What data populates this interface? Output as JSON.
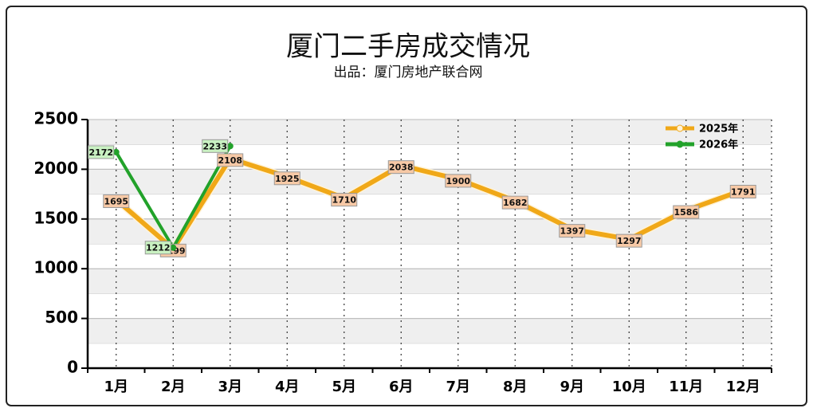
{
  "chart_data": {
    "type": "line",
    "title": "厦门二手房成交情况",
    "subtitle": "出品：厦门房地产联合网",
    "categories": [
      "1月",
      "2月",
      "3月",
      "4月",
      "5月",
      "6月",
      "7月",
      "8月",
      "9月",
      "10月",
      "11月",
      "12月"
    ],
    "series": [
      {
        "name": "2025年",
        "color": "#f0a818",
        "label_fill": "#f7c9a6",
        "values": [
          1695,
          1199,
          2108,
          1925,
          1710,
          2038,
          1900,
          1682,
          1397,
          1297,
          1586,
          1791
        ]
      },
      {
        "name": "2026年",
        "color": "#22a22a",
        "label_fill": "#c9f1c2",
        "values": [
          2172,
          1212,
          2233,
          null,
          null,
          null,
          null,
          null,
          null,
          null,
          null,
          null
        ]
      }
    ],
    "ylim": [
      0,
      2500
    ],
    "yticks": [
      0,
      500,
      1000,
      1500,
      2000,
      2500
    ],
    "grid": true,
    "legend": "upper right"
  }
}
